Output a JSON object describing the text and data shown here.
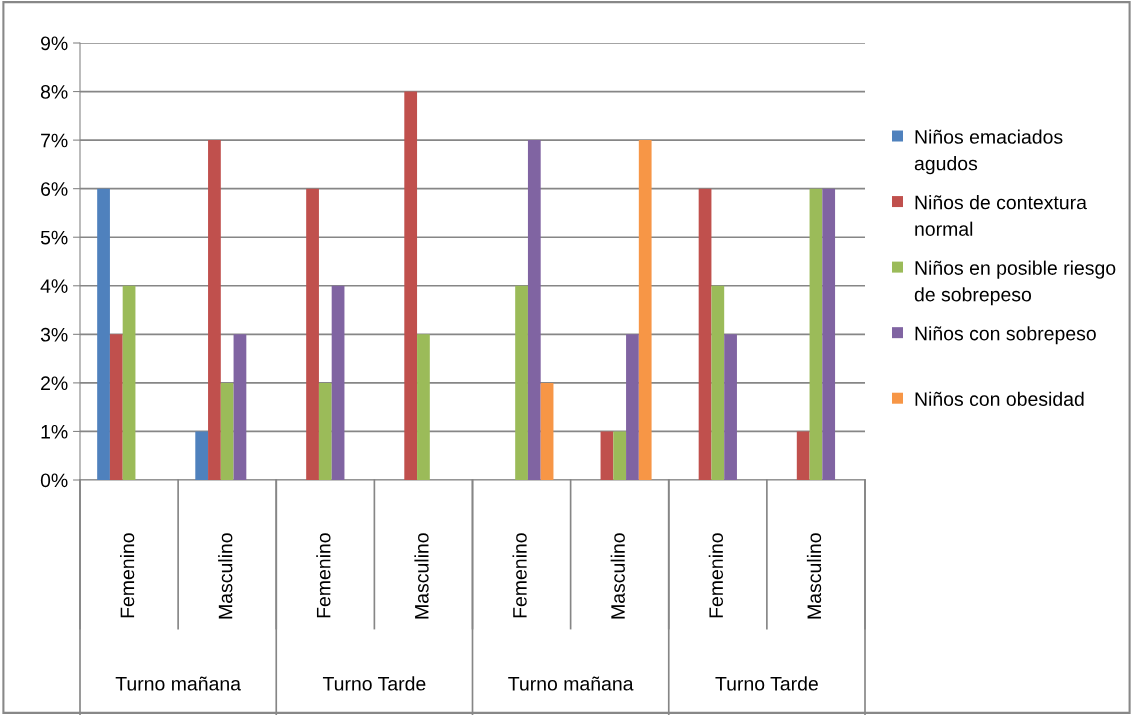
{
  "chart_data": {
    "type": "bar",
    "categories": [
      "Femenino",
      "Masculino",
      "Femenino",
      "Masculino",
      "Femenino",
      "Masculino",
      "Femenino",
      "Masculino"
    ],
    "annotations": [
      "Turno mañana",
      "Turno Tarde",
      "Turno mañana",
      "Turno Tarde"
    ],
    "series": [
      {
        "name": "Niños emaciados agudos",
        "color": "#4f81bd",
        "values": [
          6,
          1,
          0,
          0,
          0,
          0,
          0,
          0
        ]
      },
      {
        "name": "Niños de contextura normal",
        "color": "#c0504d",
        "values": [
          3,
          7,
          6,
          8,
          0,
          1,
          6,
          1
        ]
      },
      {
        "name": "Niños en posible riesgo de sobrepeso",
        "color": "#9bbb59",
        "values": [
          4,
          2,
          2,
          3,
          4,
          1,
          4,
          6
        ]
      },
      {
        "name": "Niños con sobrepeso",
        "color": "#8064a2",
        "values": [
          0,
          3,
          4,
          0,
          7,
          3,
          3,
          6
        ]
      },
      {
        "name": "Niños con obesidad",
        "color": "#f79646",
        "values": [
          0,
          0,
          0,
          0,
          2,
          7,
          0,
          0
        ]
      }
    ],
    "ylim": [
      0,
      9
    ],
    "yticks": [
      {
        "value": 0,
        "label": "0%"
      },
      {
        "value": 1,
        "label": "1%"
      },
      {
        "value": 2,
        "label": "2%"
      },
      {
        "value": 3,
        "label": "3%"
      },
      {
        "value": 4,
        "label": "4%"
      },
      {
        "value": 5,
        "label": "5%"
      },
      {
        "value": 6,
        "label": "6%"
      },
      {
        "value": 7,
        "label": "7%"
      },
      {
        "value": 8,
        "label": "8%"
      },
      {
        "value": 9,
        "label": "9%"
      }
    ],
    "grid": "y",
    "legend": "right"
  }
}
